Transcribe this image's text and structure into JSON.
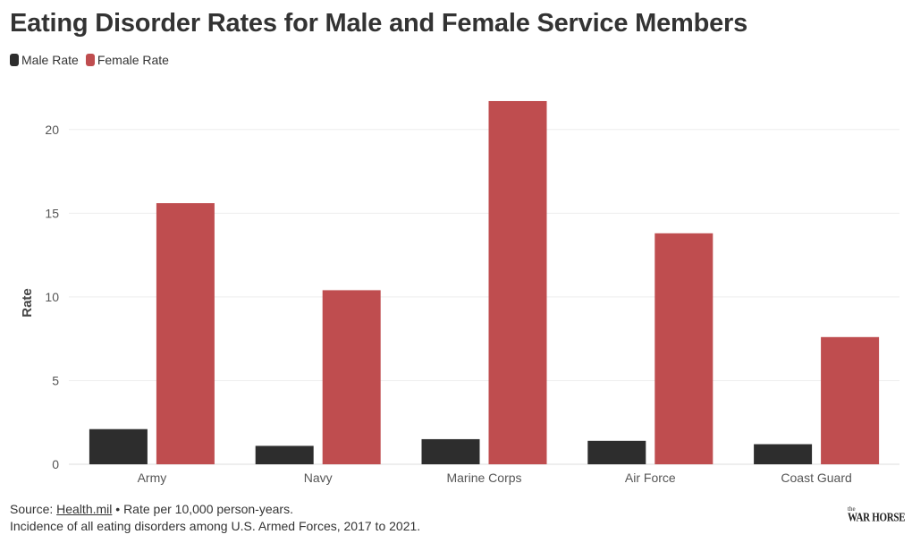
{
  "chart_data": {
    "type": "bar",
    "title": "Eating Disorder Rates for Male and Female Service Members",
    "categories": [
      "Army",
      "Navy",
      "Marine Corps",
      "Air Force",
      "Coast Guard"
    ],
    "series": [
      {
        "name": "Male Rate",
        "color": "#2d2d2d",
        "values": [
          2.1,
          1.1,
          1.5,
          1.4,
          1.2
        ]
      },
      {
        "name": "Female Rate",
        "color": "#bf4d4f",
        "values": [
          15.6,
          10.4,
          21.7,
          13.8,
          7.6
        ]
      }
    ],
    "xlabel": "",
    "ylabel": "Rate",
    "ylim": [
      0,
      22.5
    ],
    "yticks": [
      0,
      5,
      10,
      15,
      20
    ],
    "grid": true,
    "legend": "top-left"
  },
  "footer": {
    "source_prefix": "Source: ",
    "source_link": "Health.mil",
    "source_suffix": " • Rate per 10,000 person-years.",
    "note": "Incidence of all eating disorders among U.S. Armed Forces, 2017 to 2021."
  },
  "logo": {
    "small": "the",
    "main": "WAR HORSE"
  }
}
